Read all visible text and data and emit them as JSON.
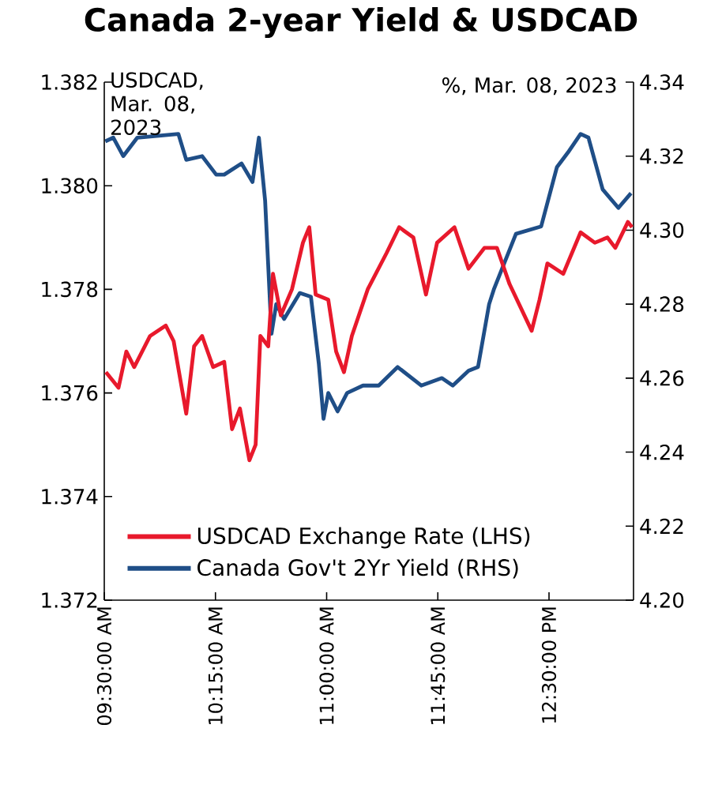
{
  "chart_data": {
    "type": "line",
    "title": "Canada 2-year Yield & USDCAD",
    "ylabel": "USDCAD, Mar. 08, 2023",
    "y2label": "%, Mar. 08, 2023",
    "xlim": [
      9.5,
      13.07
    ],
    "xticks": [
      {
        "value": 9.5,
        "label": "09:30:00 AM"
      },
      {
        "value": 10.25,
        "label": "10:15:00 AM"
      },
      {
        "value": 11.0,
        "label": "11:00:00 AM"
      },
      {
        "value": 11.75,
        "label": "11:45:00 AM"
      },
      {
        "value": 12.5,
        "label": "12:30:00 PM"
      }
    ],
    "ylim": [
      1.372,
      1.382
    ],
    "yticks": [
      1.372,
      1.374,
      1.376,
      1.378,
      {
        "value": 1.38,
        "label": "1.380"
      },
      1.382
    ],
    "y2lim": [
      4.2,
      4.34
    ],
    "y2ticks": [
      {
        "value": 4.2,
        "label": "4.20"
      },
      {
        "value": 4.22,
        "label": "4.22"
      },
      {
        "value": 4.24,
        "label": "4.24"
      },
      {
        "value": 4.26,
        "label": "4.26"
      },
      {
        "value": 4.28,
        "label": "4.28"
      },
      {
        "value": 4.3,
        "label": "4.30"
      },
      {
        "value": 4.32,
        "label": "4.32"
      },
      {
        "value": 4.34,
        "label": "4.34"
      }
    ],
    "legend": "bottom",
    "line_style": "solid",
    "series": [
      {
        "name": "USDCAD Exchange Rate (LHS)",
        "color": "#e8192c",
        "x": [
          9.511,
          9.596,
          9.649,
          9.702,
          9.809,
          9.915,
          9.968,
          10.053,
          10.106,
          10.16,
          10.234,
          10.309,
          10.362,
          10.415,
          10.479,
          10.521,
          10.553,
          10.606,
          10.638,
          10.691,
          10.766,
          10.84,
          10.883,
          10.926,
          11.011,
          11.064,
          11.117,
          11.17,
          11.277,
          11.404,
          11.489,
          11.585,
          11.67,
          11.745,
          11.862,
          11.957,
          12.064,
          12.149,
          12.234,
          12.383,
          12.436,
          12.489,
          12.596,
          12.713,
          12.809,
          12.894,
          12.947,
          13.032,
          13.06
        ],
        "values": [
          1.3764,
          1.3761,
          1.3768,
          1.3765,
          1.3771,
          1.3773,
          1.377,
          1.3756,
          1.3769,
          1.3771,
          1.3765,
          1.3766,
          1.3753,
          1.3757,
          1.3747,
          1.375,
          1.3771,
          1.3769,
          1.3783,
          1.3775,
          1.378,
          1.3789,
          1.3792,
          1.3779,
          1.3778,
          1.3768,
          1.3764,
          1.3771,
          1.378,
          1.3787,
          1.3792,
          1.379,
          1.3779,
          1.3789,
          1.3792,
          1.3784,
          1.3788,
          1.3788,
          1.3781,
          1.3772,
          1.3778,
          1.3785,
          1.3783,
          1.3791,
          1.3789,
          1.379,
          1.3788,
          1.3793,
          1.3792
        ]
      },
      {
        "name": "Canada Gov't 2Yr Yield (RHS)",
        "color": "#1f4e87",
        "axis": "y2",
        "x": [
          9.507,
          9.561,
          9.628,
          9.723,
          10.0,
          10.053,
          10.16,
          10.255,
          10.309,
          10.426,
          10.5,
          10.543,
          10.585,
          10.628,
          10.66,
          10.713,
          10.819,
          10.894,
          10.947,
          10.979,
          11.011,
          11.074,
          11.138,
          11.245,
          11.351,
          11.479,
          11.638,
          11.777,
          11.851,
          11.957,
          12.021,
          12.096,
          12.128,
          12.277,
          12.447,
          12.553,
          12.628,
          12.713,
          12.766,
          12.862,
          12.968,
          13.053
        ],
        "values": [
          4.324,
          4.325,
          4.32,
          4.325,
          4.326,
          4.319,
          4.32,
          4.315,
          4.315,
          4.318,
          4.313,
          4.325,
          4.308,
          4.272,
          4.28,
          4.276,
          4.283,
          4.282,
          4.264,
          4.249,
          4.256,
          4.251,
          4.256,
          4.258,
          4.258,
          4.263,
          4.258,
          4.26,
          4.258,
          4.262,
          4.263,
          4.28,
          4.284,
          4.299,
          4.301,
          4.317,
          4.321,
          4.326,
          4.325,
          4.311,
          4.306,
          4.31
        ]
      }
    ]
  }
}
